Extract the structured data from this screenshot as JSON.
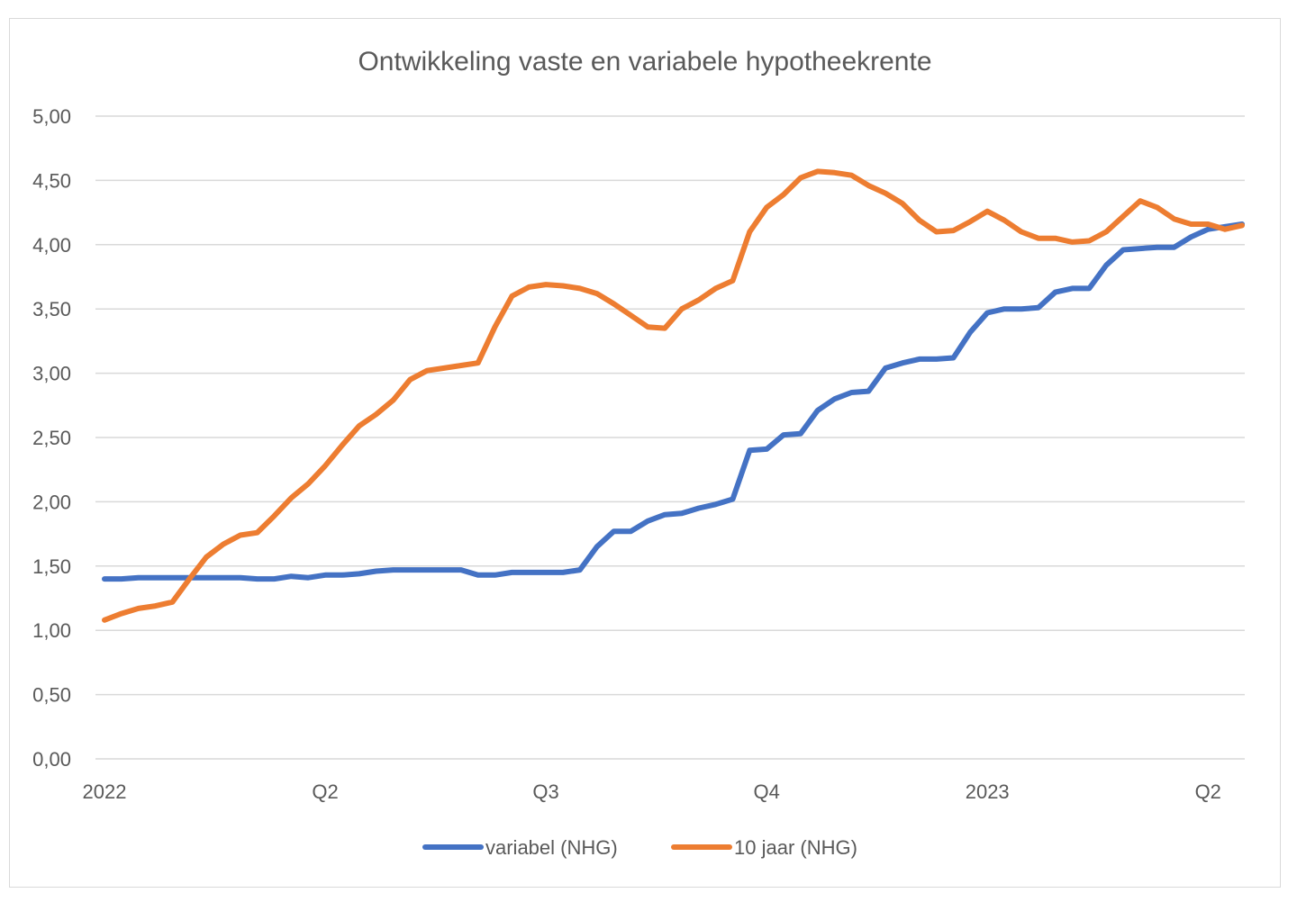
{
  "chart_data": {
    "type": "line",
    "title": "Ontwikkeling vaste en variabele hypotheekrente",
    "xlabel": "",
    "ylabel": "",
    "ylim": [
      0,
      5
    ],
    "y_ticks": [
      "0,00",
      "0,50",
      "1,00",
      "1,50",
      "2,00",
      "2,50",
      "3,00",
      "3,50",
      "4,00",
      "4,50",
      "5,00"
    ],
    "y_tick_values": [
      0,
      0.5,
      1,
      1.5,
      2,
      2.5,
      3,
      3.5,
      4,
      4.5,
      5
    ],
    "x_ticks": [
      "2022",
      "Q2",
      "Q3",
      "Q4",
      "2023",
      "Q2"
    ],
    "x_tick_indices": [
      0,
      13,
      26,
      39,
      52,
      65
    ],
    "grid": true,
    "legend_position": "bottom",
    "series": [
      {
        "name": "variabel (NHG)",
        "color": "#4472C4",
        "values": [
          1.4,
          1.4,
          1.41,
          1.41,
          1.41,
          1.41,
          1.41,
          1.41,
          1.41,
          1.4,
          1.4,
          1.42,
          1.41,
          1.43,
          1.43,
          1.44,
          1.46,
          1.47,
          1.47,
          1.47,
          1.47,
          1.47,
          1.43,
          1.43,
          1.45,
          1.45,
          1.45,
          1.45,
          1.47,
          1.65,
          1.77,
          1.77,
          1.85,
          1.9,
          1.91,
          1.95,
          1.98,
          2.02,
          2.4,
          2.41,
          2.52,
          2.53,
          2.71,
          2.8,
          2.85,
          2.86,
          3.04,
          3.08,
          3.11,
          3.11,
          3.12,
          3.32,
          3.47,
          3.5,
          3.5,
          3.51,
          3.63,
          3.66,
          3.66,
          3.84,
          3.96,
          3.97,
          3.98,
          3.98,
          4.06,
          4.12,
          4.14,
          4.16
        ]
      },
      {
        "name": "10 jaar (NHG)",
        "color": "#ED7D31",
        "values": [
          1.08,
          1.13,
          1.17,
          1.19,
          1.22,
          1.4,
          1.57,
          1.67,
          1.74,
          1.76,
          1.89,
          2.03,
          2.14,
          2.28,
          2.44,
          2.59,
          2.68,
          2.79,
          2.95,
          3.02,
          3.04,
          3.06,
          3.08,
          3.36,
          3.6,
          3.67,
          3.69,
          3.68,
          3.66,
          3.62,
          3.54,
          3.45,
          3.36,
          3.35,
          3.5,
          3.57,
          3.66,
          3.72,
          4.1,
          4.29,
          4.39,
          4.52,
          4.57,
          4.56,
          4.54,
          4.46,
          4.4,
          4.32,
          4.19,
          4.1,
          4.11,
          4.18,
          4.26,
          4.19,
          4.1,
          4.05,
          4.05,
          4.02,
          4.03,
          4.1,
          4.22,
          4.34,
          4.29,
          4.2,
          4.16,
          4.16,
          4.12,
          4.15
        ]
      }
    ]
  }
}
